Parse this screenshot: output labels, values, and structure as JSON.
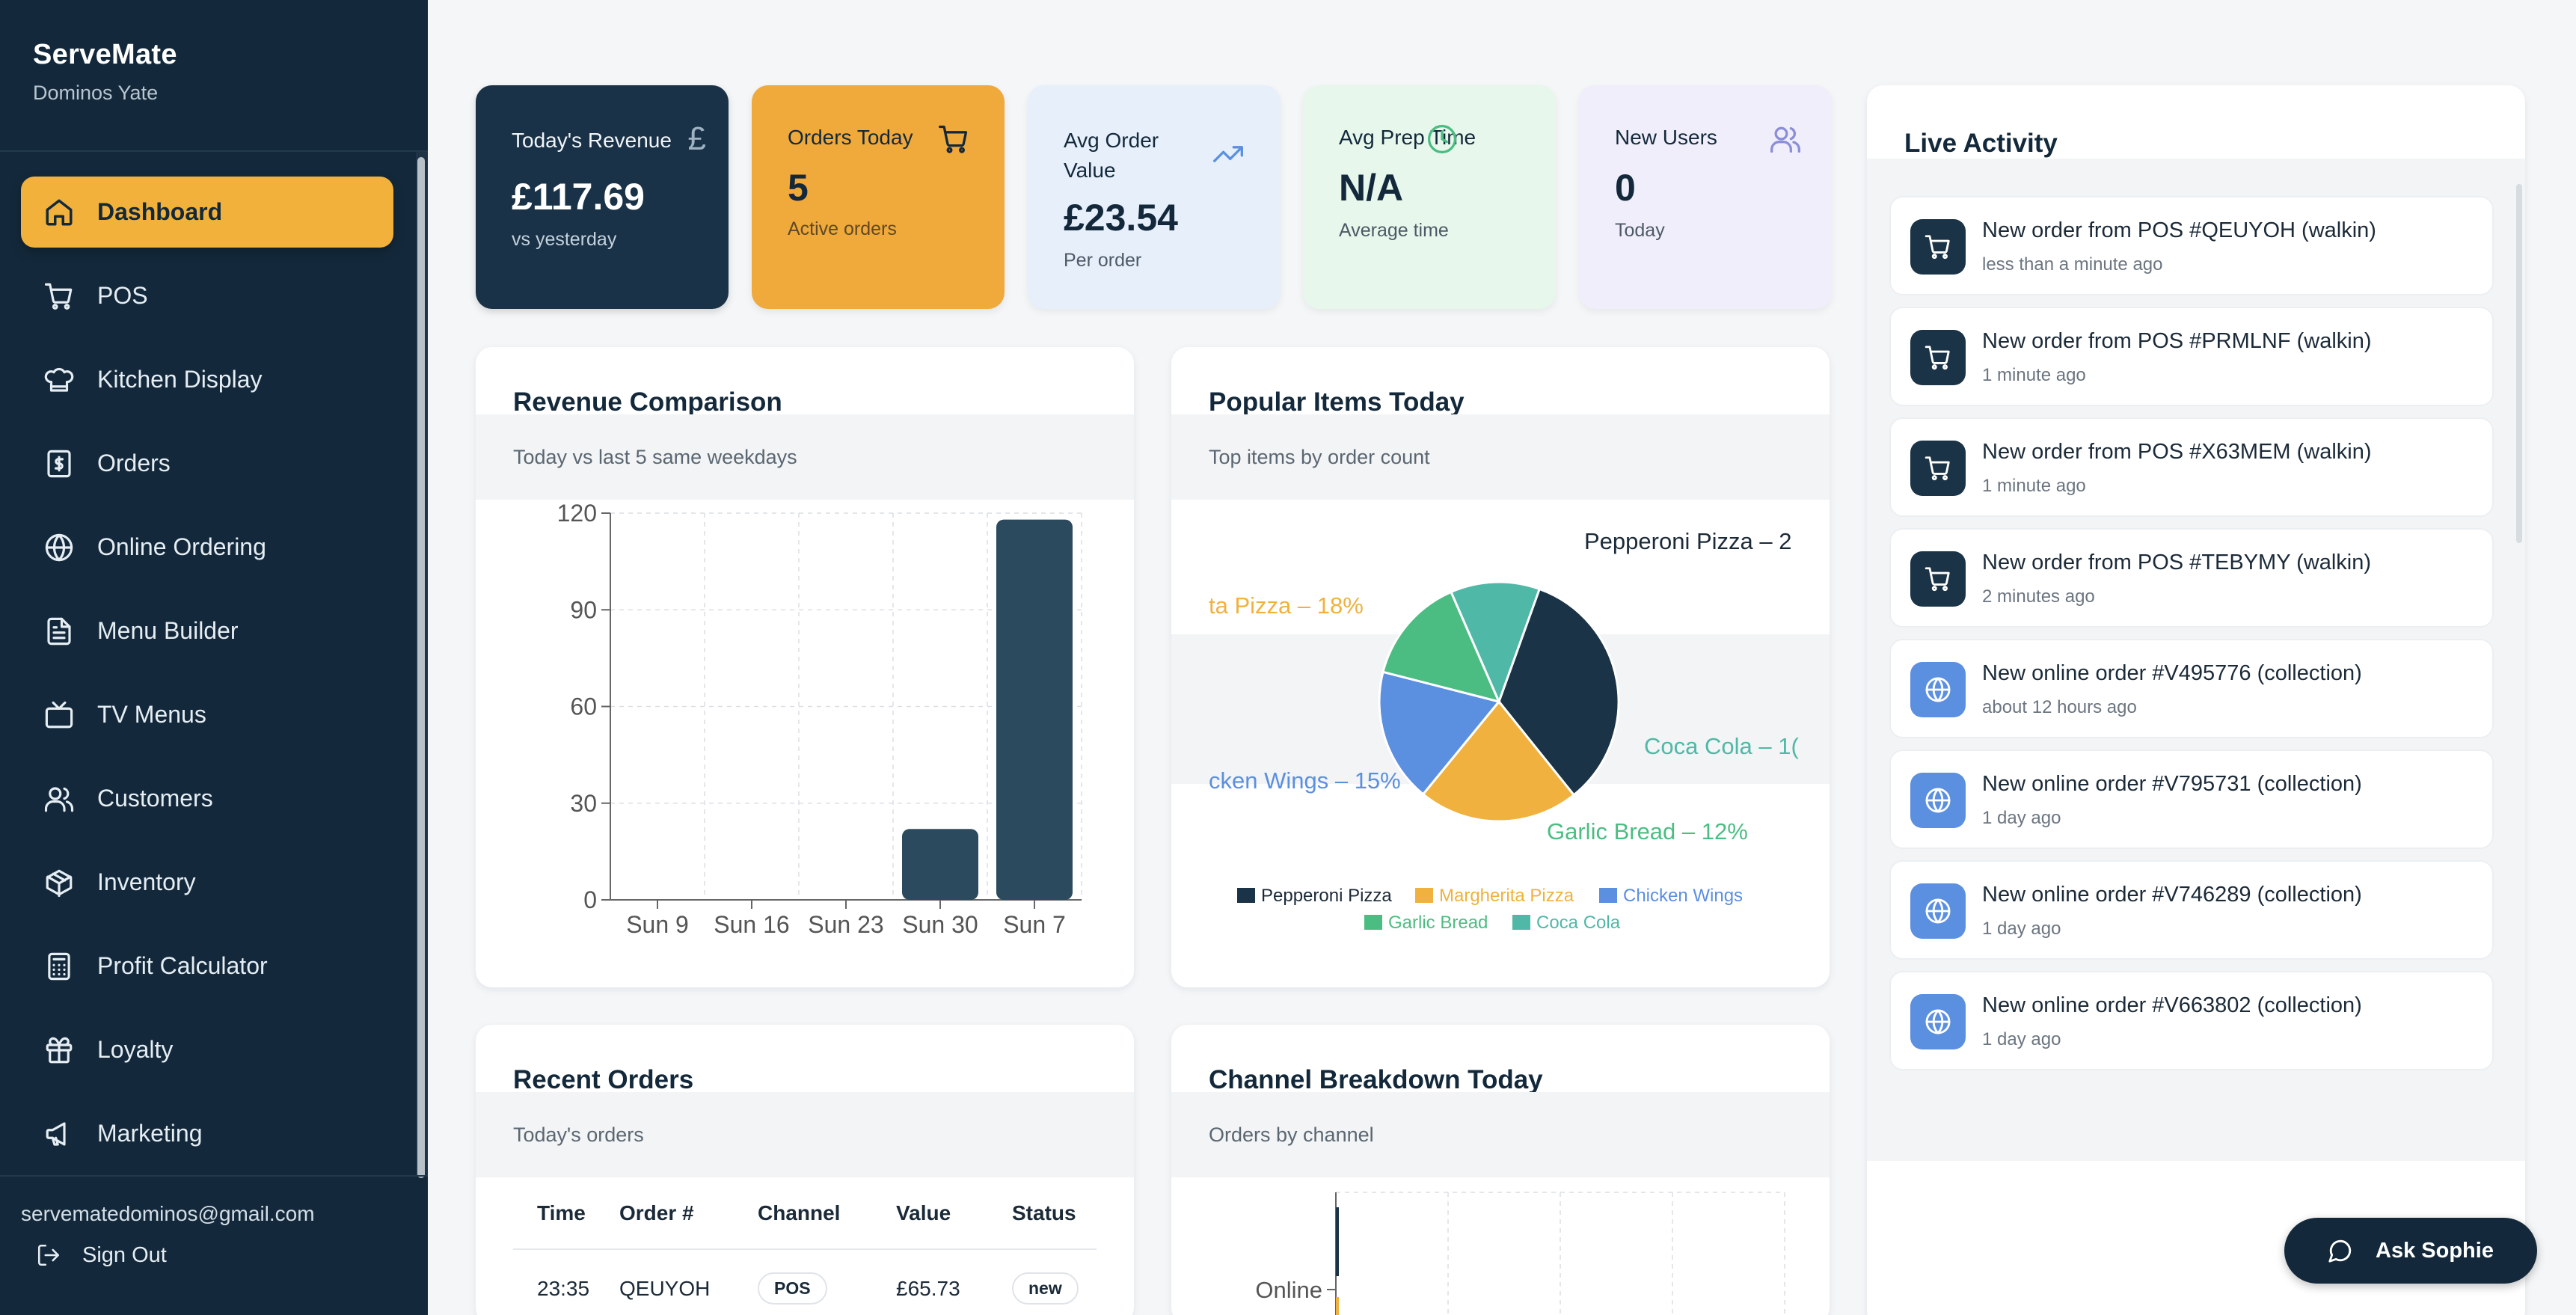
{
  "app": {
    "name": "ServeMate",
    "store": "Dominos Yate"
  },
  "sidebar": {
    "items": [
      {
        "label": "Dashboard",
        "icon": "home-icon",
        "active": true
      },
      {
        "label": "POS",
        "icon": "cart-icon"
      },
      {
        "label": "Kitchen Display",
        "icon": "chef-hat-icon"
      },
      {
        "label": "Orders",
        "icon": "receipt-icon"
      },
      {
        "label": "Online Ordering",
        "icon": "globe-icon"
      },
      {
        "label": "Menu Builder",
        "icon": "document-icon"
      },
      {
        "label": "TV Menus",
        "icon": "tv-icon"
      },
      {
        "label": "Customers",
        "icon": "users-icon"
      },
      {
        "label": "Inventory",
        "icon": "box-icon"
      },
      {
        "label": "Profit Calculator",
        "icon": "calculator-icon"
      },
      {
        "label": "Loyalty",
        "icon": "gift-icon"
      },
      {
        "label": "Marketing",
        "icon": "megaphone-icon"
      }
    ],
    "email": "servematedominos@gmail.com",
    "signout": "Sign Out"
  },
  "stats": {
    "revenue": {
      "title": "Today's Revenue",
      "value": "£117.69",
      "sub": "vs yesterday",
      "icon": "pound-icon"
    },
    "orders": {
      "title": "Orders Today",
      "value": "5",
      "sub": "Active orders",
      "icon": "cart-icon"
    },
    "avg_order": {
      "title": "Avg Order Value",
      "value": "£23.54",
      "sub": "Per order",
      "icon": "trending-up-icon"
    },
    "avg_prep": {
      "title": "Avg Prep Time",
      "value": "N/A",
      "sub": "Average time",
      "icon": "clock-icon"
    },
    "new_users": {
      "title": "New Users",
      "value": "0",
      "sub": "Today",
      "icon": "users-icon"
    }
  },
  "revenue_panel": {
    "title": "Revenue Comparison",
    "subtitle": "Today vs last 5 same weekdays"
  },
  "popular_panel": {
    "title": "Popular Items Today",
    "subtitle": "Top items by order count"
  },
  "orders_panel": {
    "title": "Recent Orders",
    "subtitle": "Today's orders",
    "columns": [
      "Time",
      "Order #",
      "Channel",
      "Value",
      "Status"
    ],
    "rows": [
      {
        "time": "23:35",
        "order": "QEUYOH",
        "channel": "POS",
        "value": "£65.73",
        "status": "new"
      }
    ]
  },
  "channel_panel": {
    "title": "Channel Breakdown Today",
    "subtitle": "Orders by channel"
  },
  "chart_data": [
    {
      "type": "bar",
      "categories": [
        "Sun 9",
        "Sun 16",
        "Sun 23",
        "Sun 30",
        "Sun 7"
      ],
      "values": [
        0,
        0,
        0,
        22,
        118
      ],
      "ylim": [
        0,
        120
      ],
      "yticks": [
        "0",
        "30",
        "60",
        "90",
        "120"
      ],
      "color": "#2c4a5e",
      "grid": true
    },
    {
      "type": "pie",
      "categories": [
        "Pepperoni Pizza",
        "Margherita Pizza",
        "Chicken Wings",
        "Garlic Bread",
        "Coca Cola"
      ],
      "values": [
        28,
        18,
        15,
        12,
        10
      ],
      "labels": [
        "Pepperoni Pizza – 2",
        "ta Pizza – 18%",
        "cken Wings – 15%",
        "Garlic Bread – 12%",
        "Coca Cola – 1("
      ],
      "colors": [
        "#1b3347",
        "#f0b13e",
        "#5b8fe0",
        "#4cbd82",
        "#4fb8a6"
      ],
      "legend": "bottom"
    },
    {
      "type": "bar",
      "categories": [
        "Online"
      ],
      "grid": true
    }
  ],
  "activity": {
    "title": "Live Activity",
    "items": [
      {
        "title": "New order from POS #QEUYOH (walkin)",
        "time": "less than a minute ago",
        "kind": "pos"
      },
      {
        "title": "New order from POS #PRMLNF (walkin)",
        "time": "1 minute ago",
        "kind": "pos"
      },
      {
        "title": "New order from POS #X63MEM (walkin)",
        "time": "1 minute ago",
        "kind": "pos"
      },
      {
        "title": "New order from POS #TEBYMY (walkin)",
        "time": "2 minutes ago",
        "kind": "pos"
      },
      {
        "title": "New online order #V495776 (collection)",
        "time": "about 12 hours ago",
        "kind": "online"
      },
      {
        "title": "New online order #V795731 (collection)",
        "time": "1 day ago",
        "kind": "online"
      },
      {
        "title": "New online order #V746289 (collection)",
        "time": "1 day ago",
        "kind": "online"
      },
      {
        "title": "New online order #V663802 (collection)",
        "time": "1 day ago",
        "kind": "online"
      }
    ]
  },
  "assistant": {
    "label": "Ask Sophie"
  }
}
